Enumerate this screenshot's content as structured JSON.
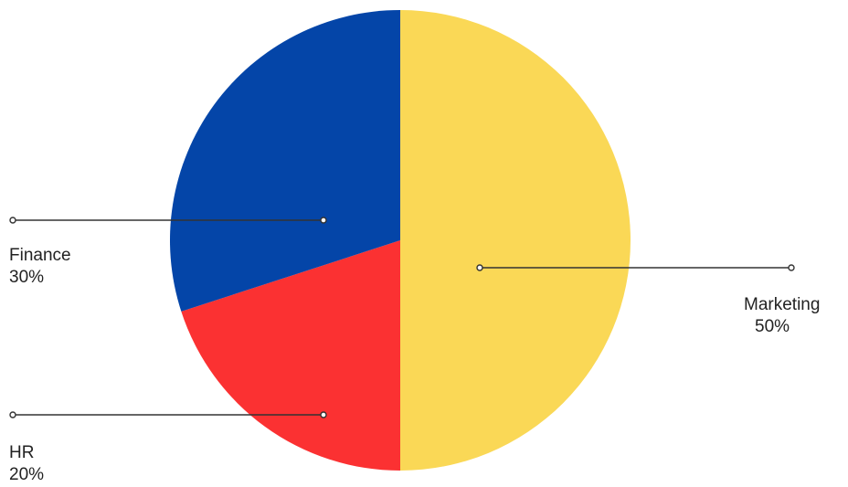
{
  "chart_data": {
    "type": "pie",
    "title": "",
    "slices": [
      {
        "label": "Marketing",
        "value": 50,
        "display": "50%",
        "color": "#FAD856"
      },
      {
        "label": "HR",
        "value": 20,
        "display": "20%",
        "color": "#FB3132"
      },
      {
        "label": "Finance",
        "value": 30,
        "display": "30%",
        "color": "#0445A8"
      }
    ],
    "start_angle": "12 o'clock",
    "direction": "clockwise",
    "leader_line_color": "#333333"
  }
}
